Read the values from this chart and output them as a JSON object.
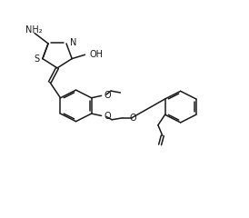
{
  "bg_color": "#ffffff",
  "line_color": "#1a1a1a",
  "line_width": 1.1,
  "font_size": 6.5,
  "figsize": [
    2.74,
    2.4
  ],
  "dpi": 100,
  "xlim": [
    0,
    10
  ],
  "ylim": [
    0,
    10
  ]
}
